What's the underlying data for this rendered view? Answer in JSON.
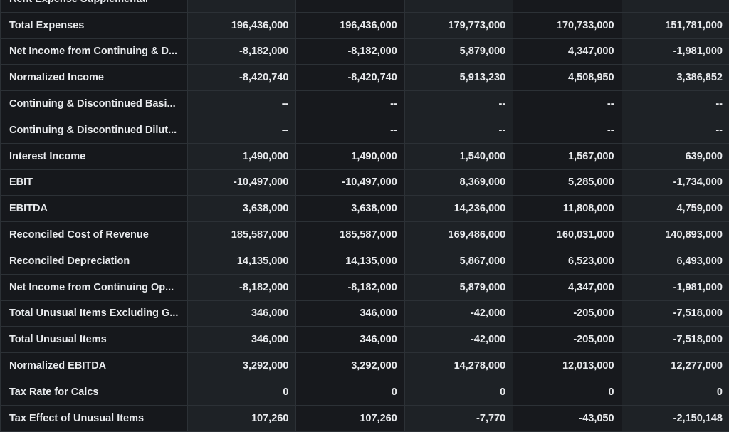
{
  "rows": [
    {
      "label": "Rent Expense Supplemental",
      "values": [
        "",
        "",
        "",
        "",
        ""
      ]
    },
    {
      "label": "Total Expenses",
      "values": [
        "196,436,000",
        "196,436,000",
        "179,773,000",
        "170,733,000",
        "151,781,000"
      ]
    },
    {
      "label": "Net Income from Continuing & D...",
      "values": [
        "-8,182,000",
        "-8,182,000",
        "5,879,000",
        "4,347,000",
        "-1,981,000"
      ]
    },
    {
      "label": "Normalized Income",
      "values": [
        "-8,420,740",
        "-8,420,740",
        "5,913,230",
        "4,508,950",
        "3,386,852"
      ]
    },
    {
      "label": "Continuing & Discontinued Basi...",
      "values": [
        "--",
        "--",
        "--",
        "--",
        "--"
      ]
    },
    {
      "label": "Continuing & Discontinued Dilut...",
      "values": [
        "--",
        "--",
        "--",
        "--",
        "--"
      ]
    },
    {
      "label": "Interest Income",
      "values": [
        "1,490,000",
        "1,490,000",
        "1,540,000",
        "1,567,000",
        "639,000"
      ]
    },
    {
      "label": "EBIT",
      "values": [
        "-10,497,000",
        "-10,497,000",
        "8,369,000",
        "5,285,000",
        "-1,734,000"
      ]
    },
    {
      "label": "EBITDA",
      "values": [
        "3,638,000",
        "3,638,000",
        "14,236,000",
        "11,808,000",
        "4,759,000"
      ]
    },
    {
      "label": "Reconciled Cost of Revenue",
      "values": [
        "185,587,000",
        "185,587,000",
        "169,486,000",
        "160,031,000",
        "140,893,000"
      ]
    },
    {
      "label": "Reconciled Depreciation",
      "values": [
        "14,135,000",
        "14,135,000",
        "5,867,000",
        "6,523,000",
        "6,493,000"
      ]
    },
    {
      "label": "Net Income from Continuing Op...",
      "values": [
        "-8,182,000",
        "-8,182,000",
        "5,879,000",
        "4,347,000",
        "-1,981,000"
      ]
    },
    {
      "label": "Total Unusual Items Excluding G...",
      "values": [
        "346,000",
        "346,000",
        "-42,000",
        "-205,000",
        "-7,518,000"
      ]
    },
    {
      "label": "Total Unusual Items",
      "values": [
        "346,000",
        "346,000",
        "-42,000",
        "-205,000",
        "-7,518,000"
      ]
    },
    {
      "label": "Normalized EBITDA",
      "values": [
        "3,292,000",
        "3,292,000",
        "14,278,000",
        "12,013,000",
        "12,277,000"
      ]
    },
    {
      "label": "Tax Rate for Calcs",
      "values": [
        "0",
        "0",
        "0",
        "0",
        "0"
      ]
    },
    {
      "label": "Tax Effect of Unusual Items",
      "values": [
        "107,260",
        "107,260",
        "-7,770",
        "-43,050",
        "-2,150,148"
      ]
    }
  ]
}
